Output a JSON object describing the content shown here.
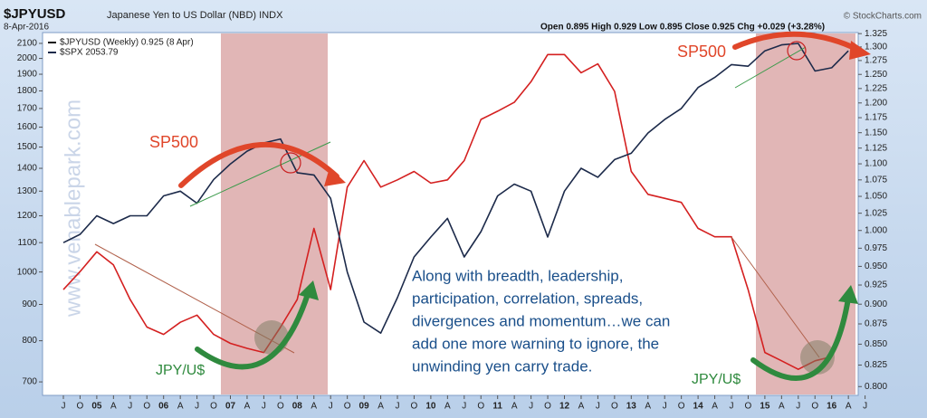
{
  "chart_data": {
    "type": "line",
    "title": "$JPYUSD",
    "title_desc": "Japanese Yen to US Dollar (NBD) INDX",
    "date": "8-Apr-2016",
    "quote": "Open 0.895  High 0.929  Low 0.895  Close 0.925  Chg +0.029 (+3.28%)",
    "source": "© StockCharts.com",
    "watermark": "www.venablepark.com",
    "categories": [
      "J",
      "O",
      "05",
      "A",
      "J",
      "O",
      "06",
      "A",
      "J",
      "O",
      "07",
      "A",
      "J",
      "O",
      "08",
      "A",
      "J",
      "O",
      "09",
      "A",
      "J",
      "O",
      "10",
      "A",
      "J",
      "O",
      "11",
      "A",
      "J",
      "O",
      "12",
      "A",
      "J",
      "O",
      "13",
      "A",
      "J",
      "O",
      "14",
      "A",
      "J",
      "O",
      "15",
      "A",
      "J",
      "O",
      "16",
      "A",
      "J"
    ],
    "log_scale": true,
    "ylim": [
      670,
      2175
    ],
    "yticks": [
      700,
      800,
      900,
      1000,
      1100,
      1200,
      1300,
      1400,
      1500,
      1600,
      1700,
      1800,
      1900,
      2000,
      2100
    ],
    "y2lim": [
      0.79,
      1.327
    ],
    "y2ticks": [
      {
        "value": 0.8,
        "label": "0.800"
      },
      {
        "value": 0.825,
        "label": "0.825"
      },
      {
        "value": 0.85,
        "label": "0.850"
      },
      {
        "value": 0.875,
        "label": "0.875"
      },
      {
        "value": 0.9,
        "label": "0.900"
      },
      {
        "value": 0.925,
        "label": "0.925"
      },
      {
        "value": 0.95,
        "label": "0.950"
      },
      {
        "value": 0.975,
        "label": "0.975"
      },
      {
        "value": 1.0,
        "label": "1.000"
      },
      {
        "value": 1.025,
        "label": "1.025"
      },
      {
        "value": 1.05,
        "label": "1.050"
      },
      {
        "value": 1.075,
        "label": "1.075"
      },
      {
        "value": 1.1,
        "label": "1.100"
      },
      {
        "value": 1.125,
        "label": "1.125"
      },
      {
        "value": 1.15,
        "label": "1.150"
      },
      {
        "value": 1.175,
        "label": "1.175"
      },
      {
        "value": 1.2,
        "label": "1.200"
      },
      {
        "value": 1.225,
        "label": "1.225"
      },
      {
        "value": 1.25,
        "label": "1.250"
      },
      {
        "value": 1.275,
        "label": "1.275"
      },
      {
        "value": 1.3,
        "label": "1.300"
      },
      {
        "value": 1.325,
        "label": "1.325"
      }
    ],
    "series": [
      {
        "name": "$JPYUSD (Weekly) 0.925 (8 Apr)",
        "color": "#d42020",
        "axis": "y2",
        "values": [
          0.919,
          0.943,
          0.97,
          0.952,
          0.906,
          0.871,
          0.862,
          0.877,
          0.886,
          0.862,
          0.851,
          0.845,
          0.84,
          0.871,
          0.906,
          1.003,
          0.919,
          1.064,
          1.105,
          1.064,
          1.075,
          1.088,
          1.07,
          1.075,
          1.105,
          1.172,
          1.186,
          1.201,
          1.237,
          1.286,
          1.286,
          1.253,
          1.269,
          1.22,
          1.088,
          1.053,
          1.047,
          1.041,
          1.003,
          0.991,
          0.991,
          0.919,
          0.84,
          0.83,
          0.82,
          0.83,
          0.835,
          0.906,
          null
        ]
      },
      {
        "name": "$SPX 2053.79",
        "color": "#1c2a4a",
        "values": [
          1100,
          1130,
          1200,
          1170,
          1200,
          1200,
          1280,
          1300,
          1250,
          1350,
          1420,
          1480,
          1520,
          1540,
          1380,
          1370,
          1270,
          1000,
          850,
          820,
          920,
          1050,
          1120,
          1190,
          1050,
          1140,
          1280,
          1330,
          1300,
          1120,
          1300,
          1400,
          1360,
          1440,
          1470,
          1570,
          1640,
          1700,
          1820,
          1880,
          1960,
          1950,
          2050,
          2090,
          2100,
          1920,
          1940,
          2050,
          null
        ]
      }
    ],
    "annotations": [
      "SP500",
      "SP500",
      "JPY/U$",
      "JPY/U$",
      "Along with breadth, leadership,",
      "participation, correlation, spreads,",
      "divergences and momentum…we can",
      "add one more warning to ignore, the",
      "unwinding yen carry trade."
    ]
  }
}
